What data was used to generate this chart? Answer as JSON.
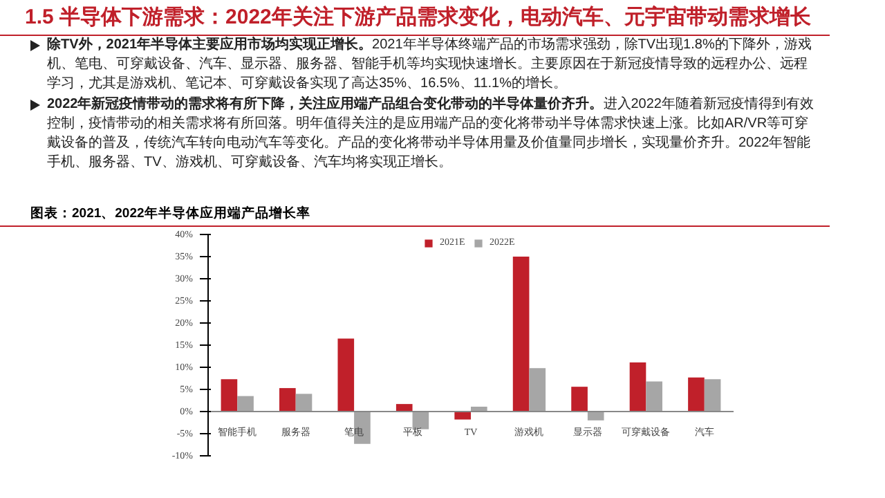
{
  "chart_data": {
    "type": "bar",
    "title": "1.5 半导体下游需求：2022年关注下游产品需求变化，电动汽车、元宇宙带动需求增长",
    "subtitle": "图表：2021、2022年半导体应用端产品增长率",
    "annotations": [
      "除TV外，2021年半导体主要应用市场均实现正增长。2021年半导体终端产品的市场需求强劲，除TV出现1.8%的下降外，游戏机、笔电、可穿戴设备、汽车、显示器、服务器、智能手机等均实现快速增长。主要原因在于新冠疫情导致的远程办公、远程学习，尤其是游戏机、笔记本、可穿戴设备实现了高达35%、16.5%、11.1%的增长。",
      "2022年新冠疫情带动的需求将有所下降，关注应用端产品组合变化带动的半导体量价齐升。进入2022年随着新冠疫情得到有效控制，疫情带动的相关需求将有所回落。明年值得关注的是应用端产品的变化将带动半导体需求快速上涨。比如AR/VR等可穿戴设备的普及，传统汽车转向电动汽车等变化。产品的变化将带动半导体用量及价值量同步增长，实现量价齐升。2022年智能手机、服务器、TV、游戏机、可穿戴设备、汽车均将实现正增长。"
    ],
    "categories": [
      "智能手机",
      "服务器",
      "笔电",
      "平板",
      "TV",
      "游戏机",
      "显示器",
      "可穿戴设备",
      "汽车"
    ],
    "series": [
      {
        "name": "2021E",
        "color": "#c0202a",
        "values": [
          7.3,
          5.3,
          16.5,
          1.7,
          -1.8,
          35,
          5.6,
          11.1,
          7.7
        ]
      },
      {
        "name": "2022E",
        "color": "#a6a6a6",
        "values": [
          3.5,
          4,
          -7.3,
          -4,
          1.1,
          9.8,
          -2,
          6.8,
          7.3
        ]
      }
    ],
    "ylim": [
      -10,
      40
    ],
    "yticks": [
      {
        "value": -10,
        "label": "-10%"
      },
      {
        "value": -5,
        "label": "-5%"
      },
      {
        "value": 0,
        "label": "0%"
      },
      {
        "value": 5,
        "label": "5%"
      },
      {
        "value": 10,
        "label": "10%"
      },
      {
        "value": 15,
        "label": "15%"
      },
      {
        "value": 20,
        "label": "20%"
      },
      {
        "value": 25,
        "label": "25%"
      },
      {
        "value": 30,
        "label": "30%"
      },
      {
        "value": 35,
        "label": "35%"
      },
      {
        "value": 40,
        "label": "40%"
      }
    ],
    "grid": false,
    "legend": "top"
  }
}
